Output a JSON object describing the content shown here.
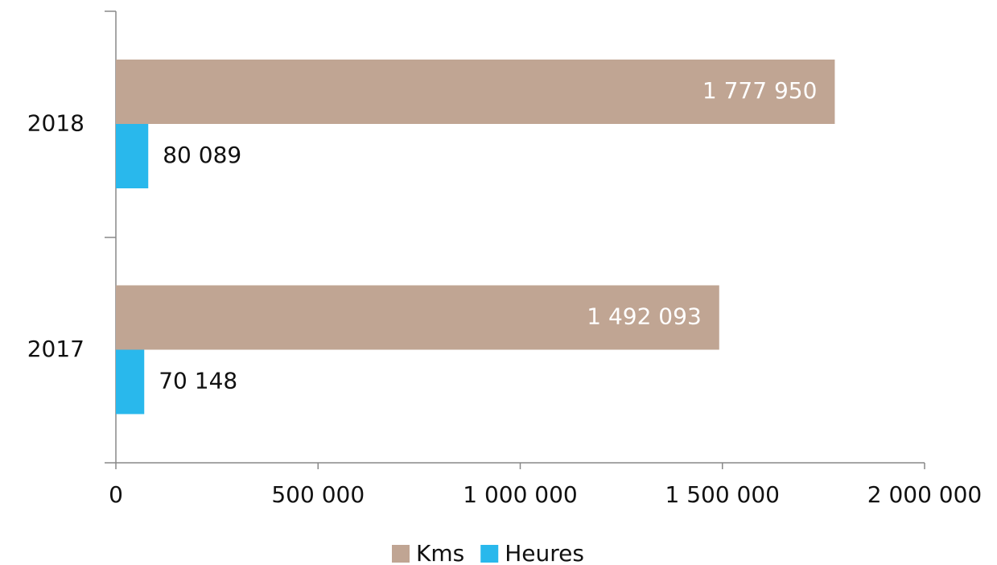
{
  "chart_data": {
    "type": "hbar",
    "categories": [
      "2018",
      "2017"
    ],
    "series": [
      {
        "name": "Kms",
        "color": "#c0a593",
        "values": [
          1777950,
          1492093
        ],
        "value_labels": [
          "1 777 950",
          "1 492 093"
        ]
      },
      {
        "name": "Heures",
        "color": "#29b8ec",
        "values": [
          80089,
          70148
        ],
        "value_labels": [
          "80 089",
          "70 148"
        ]
      }
    ],
    "xlim": [
      0,
      2000000
    ],
    "xticks": [
      0,
      {
        "value": 500000,
        "label": "500 000"
      },
      {
        "value": 1000000,
        "label": "1 000 000"
      },
      {
        "value": 1500000,
        "label": "1 500 000"
      },
      {
        "value": 2000000,
        "label": "2 000 000"
      }
    ],
    "legend": "bottom"
  }
}
